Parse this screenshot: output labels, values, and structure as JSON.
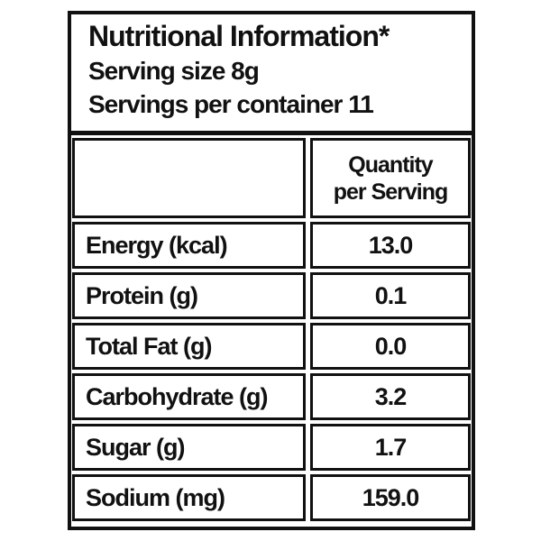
{
  "header": {
    "title": "Nutritional Information*",
    "serving_size": "Serving size 8g",
    "servings_per_container": "Servings per container 11"
  },
  "table": {
    "column_header": "Quantity per Serving",
    "rows": [
      [
        "Energy (kcal)",
        "13.0"
      ],
      [
        "Protein (g)",
        "0.1"
      ],
      [
        "Total Fat (g)",
        "0.0"
      ],
      [
        "Carbohydrate (g)",
        "3.2"
      ],
      [
        "Sugar (g)",
        "1.7"
      ],
      [
        "Sodium (mg)",
        "159.0"
      ]
    ]
  }
}
